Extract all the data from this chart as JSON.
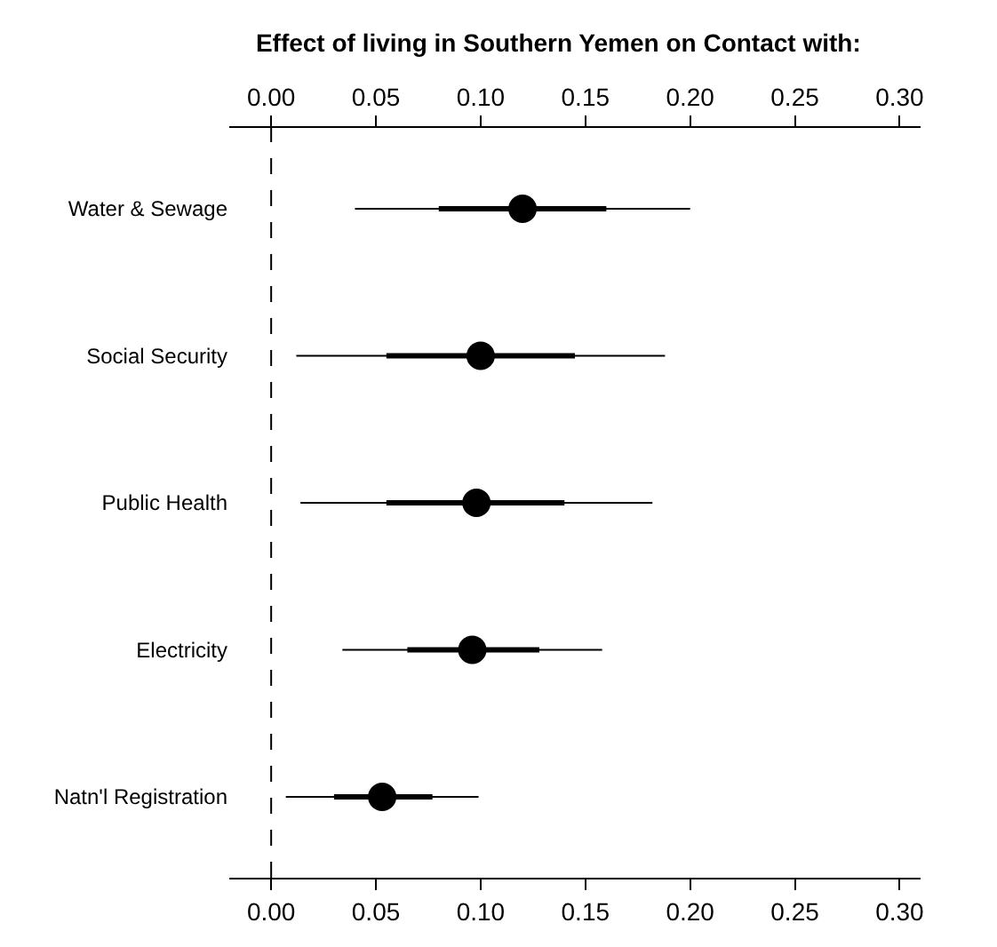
{
  "chart_data": {
    "type": "scatter",
    "orientation": "horizontal",
    "title": "Effect of living in Southern Yemen on Contact with:",
    "categories": [
      "Water & Sewage",
      "Social Security",
      "Public Health",
      "Electricity",
      "Natn'l Registration"
    ],
    "series": [
      {
        "type": "bar",
        "color": "#000000",
        "base": [
          0.08,
          0.055,
          0.055,
          0.065,
          0.03
        ],
        "values": [
          0.08,
          0.09,
          0.085,
          0.063,
          0.047
        ]
      },
      {
        "color": "#000000",
        "marker": "circle",
        "values": [
          0.12,
          0.1,
          0.098,
          0.096,
          0.053
        ],
        "errors": [
          [
            0.04,
            0.2
          ],
          [
            0.012,
            0.188
          ],
          [
            0.014,
            0.182
          ],
          [
            0.034,
            0.158
          ],
          [
            0.007,
            0.099
          ]
        ]
      }
    ],
    "xlim": [
      -0.02,
      0.31
    ],
    "x2lim": [
      -0.02,
      0.31
    ],
    "xticks": [
      {
        "value": 0,
        "label": "0.00"
      },
      {
        "value": 0.05,
        "label": "0.05"
      },
      {
        "value": 0.1,
        "label": "0.10"
      },
      {
        "value": 0.15,
        "label": "0.15"
      },
      {
        "value": 0.2,
        "label": "0.20"
      },
      {
        "value": 0.25,
        "label": "0.25"
      },
      {
        "value": 0.3,
        "label": "0.30"
      }
    ],
    "x2ticks": [
      {
        "value": 0,
        "label": "0.00"
      },
      {
        "value": 0.05,
        "label": "0.05"
      },
      {
        "value": 0.1,
        "label": "0.10"
      },
      {
        "value": 0.15,
        "label": "0.15"
      },
      {
        "value": 0.2,
        "label": "0.20"
      },
      {
        "value": 0.25,
        "label": "0.25"
      },
      {
        "value": 0.3,
        "label": "0.30"
      }
    ],
    "ref_lines": [
      {
        "axis": "x",
        "value": 0,
        "color": "#000000",
        "line_style": "dashed"
      }
    ]
  }
}
